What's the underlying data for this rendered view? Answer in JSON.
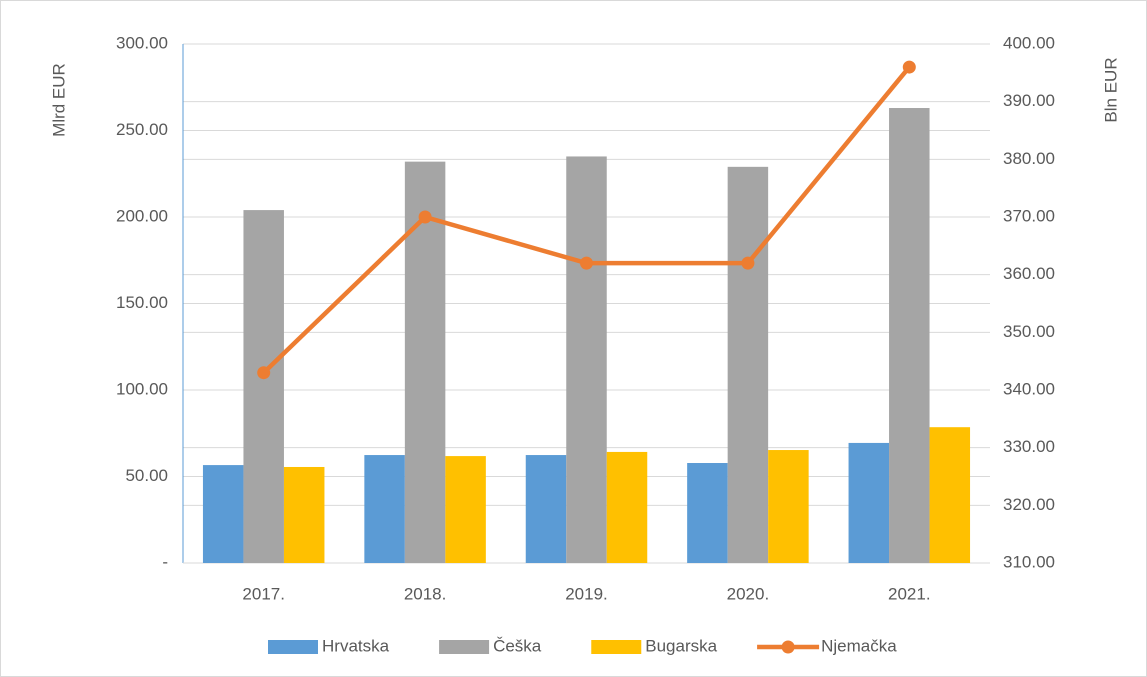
{
  "chart_data": {
    "type": "bar",
    "categories": [
      "2017.",
      "2018.",
      "2019.",
      "2020.",
      "2021."
    ],
    "ylabel": "Mlrd EUR",
    "y2label": "Bln EUR",
    "ylim": [
      0,
      300
    ],
    "yticks": [
      {
        "value": 0,
        "label": "-"
      },
      {
        "value": 50,
        "label": "50.00"
      },
      {
        "value": 100,
        "label": "100.00"
      },
      {
        "value": 150,
        "label": "150.00"
      },
      {
        "value": 200,
        "label": "200.00"
      },
      {
        "value": 250,
        "label": "250.00"
      },
      {
        "value": 300,
        "label": "300.00"
      }
    ],
    "y2lim": [
      310,
      400
    ],
    "y2ticks": [
      {
        "value": 310,
        "label": "310.00"
      },
      {
        "value": 320,
        "label": "320.00"
      },
      {
        "value": 330,
        "label": "330.00"
      },
      {
        "value": 340,
        "label": "340.00"
      },
      {
        "value": 350,
        "label": "350.00"
      },
      {
        "value": 360,
        "label": "360.00"
      },
      {
        "value": 370,
        "label": "370.00"
      },
      {
        "value": 380,
        "label": "380.00"
      },
      {
        "value": 390,
        "label": "390.00"
      },
      {
        "value": 400,
        "label": "400.00"
      }
    ],
    "grid": true,
    "legend": "bottom",
    "series": [
      {
        "name": "Hrvatska",
        "type": "bar",
        "color": "#5b9bd5",
        "values": [
          56.6,
          62.4,
          62.4,
          57.8,
          69.4
        ]
      },
      {
        "name": "Češka",
        "type": "bar",
        "color": "#a5a5a5",
        "values": [
          204,
          232,
          235,
          229,
          263
        ]
      },
      {
        "name": "Bugarska",
        "type": "bar",
        "color": "#ffc000",
        "values": [
          55.5,
          61.8,
          64.2,
          65.3,
          78.5
        ]
      },
      {
        "name": "Njemačka",
        "type": "line",
        "axis": "y2",
        "color": "#ed7d31",
        "values": [
          343,
          370,
          362,
          362,
          396
        ]
      }
    ]
  }
}
